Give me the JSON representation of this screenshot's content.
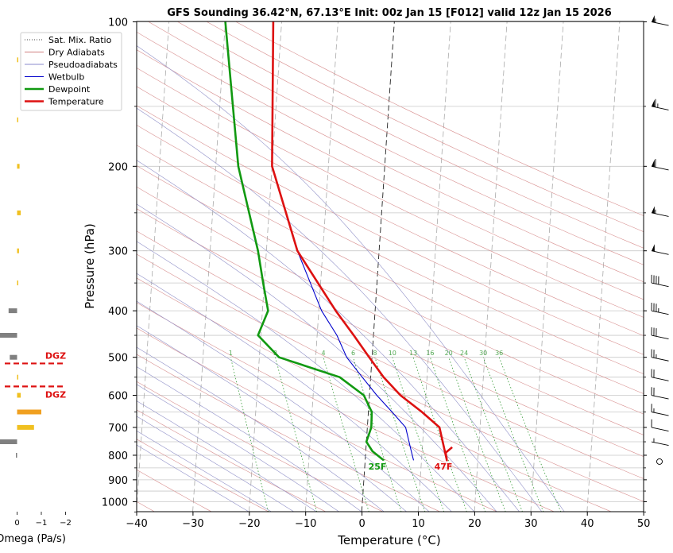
{
  "chart_data": {
    "type": "line",
    "title": "GFS Sounding 36.42°N, 67.13°E Init: 00z Jan 15 [F012] valid 12z Jan 15 2026",
    "xlabel": "Temperature (°C)",
    "ylabel": "Pressure (hPa)",
    "xlim": [
      -40,
      50
    ],
    "ylim": [
      1050,
      100
    ],
    "y_scale": "log",
    "grid": true,
    "legend_position": "top-left",
    "x_ticks": [
      -40,
      -30,
      -20,
      -10,
      0,
      10,
      20,
      30,
      40,
      50
    ],
    "x_tick_labels": [
      "−40",
      "−30",
      "−20",
      "−10",
      "0",
      "10",
      "20",
      "30",
      "40",
      "50"
    ],
    "y_ticks": [
      100,
      200,
      300,
      400,
      500,
      600,
      700,
      800,
      900,
      1000
    ],
    "y_tick_labels": [
      "100",
      "200",
      "300",
      "400",
      "500",
      "600",
      "700",
      "800",
      "900",
      "1000"
    ],
    "legend": [
      {
        "label": "Sat. Mix. Ratio",
        "color": "#444444",
        "style": "dotted"
      },
      {
        "label": "Dry Adiabats",
        "color": "#d08080",
        "style": "solid"
      },
      {
        "label": "Pseudoadiabats",
        "color": "#8888cc",
        "style": "solid"
      },
      {
        "label": "Wetbulb",
        "color": "#0000cc",
        "style": "solid"
      },
      {
        "label": "Dewpoint",
        "color": "#119911",
        "style": "solid"
      },
      {
        "label": "Temperature",
        "color": "#dd1111",
        "style": "solid"
      }
    ],
    "series": [
      {
        "name": "Temperature",
        "color": "#dd1111",
        "points": [
          [
            15.3,
            770
          ],
          [
            14.2,
            790
          ],
          [
            14.5,
            820
          ],
          [
            12.8,
            700
          ],
          [
            9.5,
            650
          ],
          [
            5.5,
            600
          ],
          [
            2.3,
            550
          ],
          [
            -0.5,
            500
          ],
          [
            -3.5,
            450
          ],
          [
            -7,
            400
          ],
          [
            -14.5,
            300
          ],
          [
            -20,
            200
          ],
          [
            -21.5,
            100
          ]
        ]
      },
      {
        "name": "Dewpoint",
        "color": "#119911",
        "points": [
          [
            3.3,
            820
          ],
          [
            1.2,
            785
          ],
          [
            0,
            750
          ],
          [
            0.7,
            700
          ],
          [
            0.6,
            650
          ],
          [
            -1.0,
            600
          ],
          [
            -5.5,
            550
          ],
          [
            -16.5,
            500
          ],
          [
            -20.5,
            450
          ],
          [
            -19.0,
            400
          ],
          [
            -20.2,
            350
          ],
          [
            -21.5,
            300
          ],
          [
            -26.0,
            200
          ],
          [
            -30,
            100
          ]
        ]
      },
      {
        "name": "Wetbulb",
        "color": "#0000cc",
        "points": [
          [
            8.6,
            820
          ],
          [
            8.0,
            780
          ],
          [
            6.8,
            700
          ],
          [
            4.2,
            650
          ],
          [
            1.3,
            600
          ],
          [
            -1.5,
            550
          ],
          [
            -4.5,
            500
          ],
          [
            -6.5,
            450
          ],
          [
            -9.5,
            400
          ],
          [
            -14.5,
            300
          ]
        ]
      }
    ],
    "mixing_ratio_labels": [
      "1",
      "2",
      "4",
      "6",
      "8",
      "10",
      "13",
      "16",
      "20",
      "24",
      "30",
      "36"
    ],
    "surface_temperature_label": "47F",
    "surface_dewpoint_label": "25F",
    "wind_barbs": [
      {
        "pressure": 100,
        "speed_kt": 55
      },
      {
        "pressure": 150,
        "speed_kt": 65
      },
      {
        "pressure": 200,
        "speed_kt": 60
      },
      {
        "pressure": 250,
        "speed_kt": 55
      },
      {
        "pressure": 300,
        "speed_kt": 50
      },
      {
        "pressure": 350,
        "speed_kt": 40
      },
      {
        "pressure": 400,
        "speed_kt": 35
      },
      {
        "pressure": 450,
        "speed_kt": 30
      },
      {
        "pressure": 500,
        "speed_kt": 25
      },
      {
        "pressure": 550,
        "speed_kt": 20
      },
      {
        "pressure": 600,
        "speed_kt": 20
      },
      {
        "pressure": 650,
        "speed_kt": 15
      },
      {
        "pressure": 700,
        "speed_kt": 10
      },
      {
        "pressure": 750,
        "speed_kt": 5
      },
      {
        "pressure": 800,
        "speed_kt": 0
      }
    ],
    "omega_panel": {
      "xlabel": "Omega (Pa/s)",
      "x_tick_labels": [
        "0",
        "−1",
        "−2"
      ],
      "dgz_label": "DGZ",
      "dgz_top_pressure": 515,
      "dgz_bottom_pressure": 575,
      "bars": [
        {
          "pressure": 120,
          "value": -0.05,
          "color": "#f0c020"
        },
        {
          "pressure": 160,
          "value": -0.05,
          "color": "#f0c020"
        },
        {
          "pressure": 200,
          "value": -0.1,
          "color": "#f0c020"
        },
        {
          "pressure": 250,
          "value": -0.15,
          "color": "#f0c020"
        },
        {
          "pressure": 300,
          "value": -0.08,
          "color": "#f0c020"
        },
        {
          "pressure": 350,
          "value": -0.05,
          "color": "#f0c020"
        },
        {
          "pressure": 400,
          "value": 0.35,
          "color": "#808080"
        },
        {
          "pressure": 450,
          "value": 0.75,
          "color": "#808080"
        },
        {
          "pressure": 500,
          "value": 0.3,
          "color": "#808080"
        },
        {
          "pressure": 550,
          "value": -0.05,
          "color": "#f0c020"
        },
        {
          "pressure": 600,
          "value": -0.15,
          "color": "#f0c020"
        },
        {
          "pressure": 650,
          "value": -1.0,
          "color": "#f0a020"
        },
        {
          "pressure": 700,
          "value": -0.7,
          "color": "#f0c020"
        },
        {
          "pressure": 750,
          "value": 0.8,
          "color": "#808080"
        },
        {
          "pressure": 800,
          "value": 0.05,
          "color": "#808080"
        }
      ]
    }
  }
}
